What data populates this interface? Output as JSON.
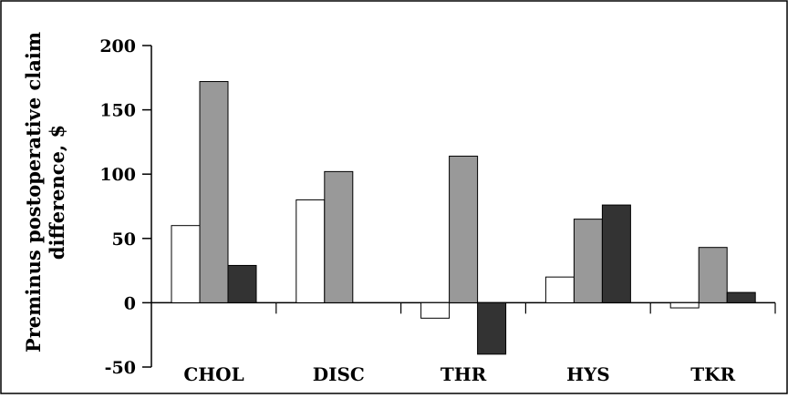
{
  "chart_data": {
    "type": "bar",
    "title": "",
    "xlabel": "",
    "ylabel_lines": [
      "Preminus postoperative claim",
      "difference, $"
    ],
    "categories": [
      "CHOL",
      "DISC",
      "THR",
      "HYS",
      "TKR"
    ],
    "series": [
      {
        "color": "#ffffff",
        "values": [
          60,
          80,
          -12,
          20,
          -4
        ]
      },
      {
        "color": "#999999",
        "values": [
          172,
          102,
          114,
          65,
          43
        ]
      },
      {
        "color": "#333333",
        "values": [
          29,
          null,
          -40,
          76,
          8
        ]
      }
    ],
    "ylim": [
      -50,
      200
    ],
    "yticks": [
      -50,
      0,
      50,
      100,
      150,
      200
    ],
    "grid": false,
    "legend": "none"
  }
}
